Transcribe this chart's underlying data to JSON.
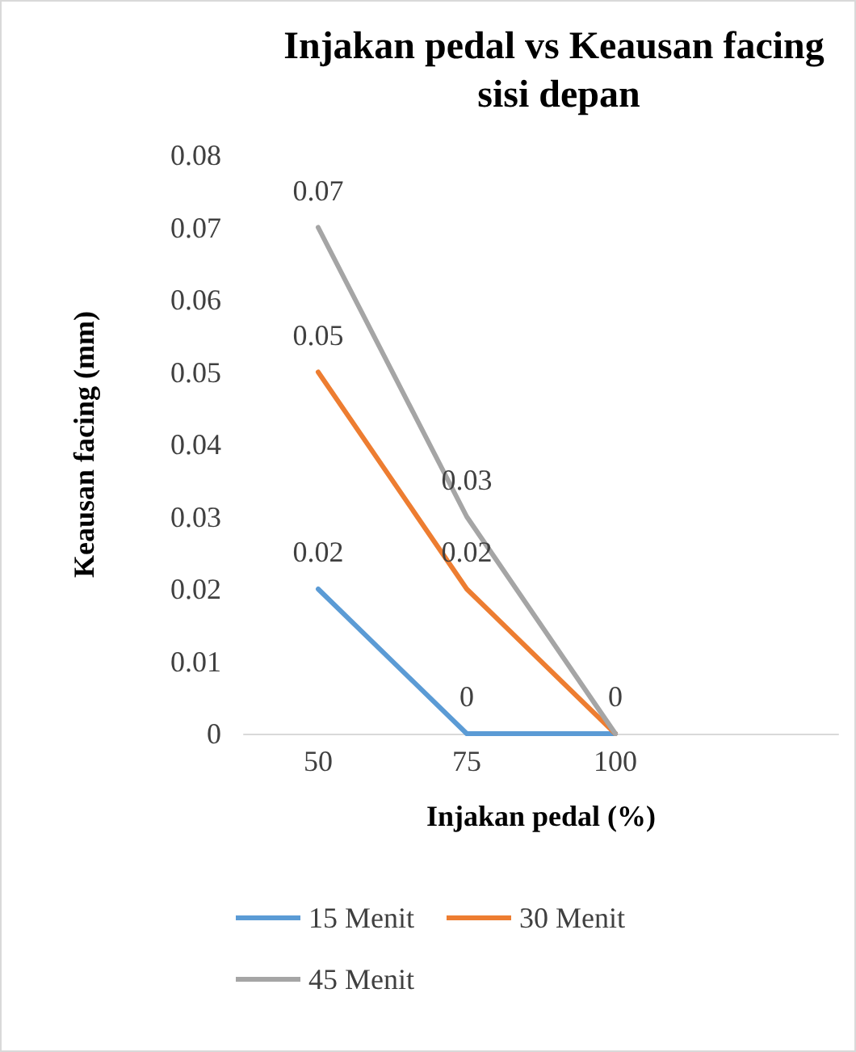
{
  "chart_data": {
    "type": "line",
    "title": "Injakan pedal vs Keausan facing sisi depan",
    "xlabel": "Injakan pedal (%)",
    "ylabel": "Keausan facing (mm)",
    "categories": [
      "50",
      "75",
      "100",
      null
    ],
    "series": [
      {
        "name": "15 Menit",
        "color": "#5b9bd5",
        "values": [
          0.02,
          0,
          0,
          null
        ],
        "value_labels": [
          "0.02",
          "0",
          "0",
          null
        ]
      },
      {
        "name": "30 Menit",
        "color": "#ed7d31",
        "values": [
          0.05,
          0.02,
          0,
          null
        ],
        "value_labels": [
          "0.05",
          "0.02",
          null,
          null
        ]
      },
      {
        "name": "45 Menit",
        "color": "#a5a5a5",
        "values": [
          0.07,
          0.03,
          0,
          null
        ],
        "value_labels": [
          "0.07",
          "0.03",
          null,
          null
        ]
      }
    ],
    "ylim": [
      0,
      0.08
    ],
    "yticks": [
      0,
      0.01,
      0.02,
      0.03,
      0.04,
      0.05,
      0.06,
      0.07,
      0.08
    ],
    "grid": false,
    "legend": "bottom",
    "marker": "none",
    "line_style": "solid"
  }
}
